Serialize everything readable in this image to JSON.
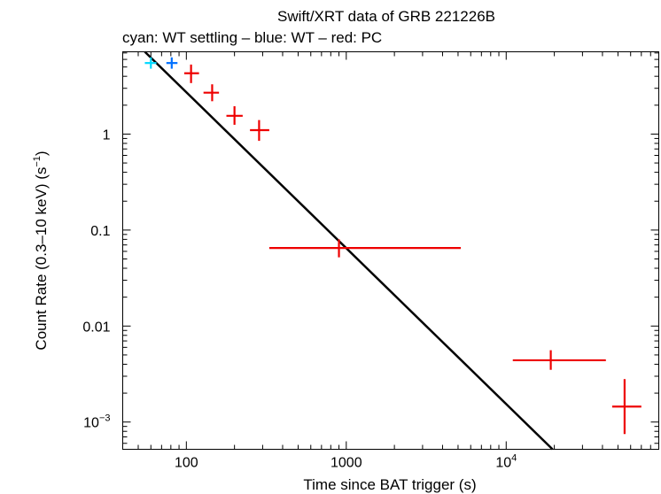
{
  "chart_data": {
    "type": "scatter",
    "title": "Swift/XRT data of GRB 221226B",
    "subtitle": "cyan: WT settling – blue: WT – red: PC",
    "xlabel": "Time since BAT trigger (s)",
    "ylabel": "Count Rate (0.3–10 keV) (s",
    "ylabel_sup": "−1",
    "ylabel_tail": ")",
    "x_scale": "log",
    "y_scale": "log",
    "xlim": [
      40,
      90000
    ],
    "ylim": [
      0.00052,
      7.2
    ],
    "grid": false,
    "x_ticks": [
      {
        "value": 100,
        "label": "100"
      },
      {
        "value": 1000,
        "label": "1000"
      },
      {
        "value": 10000,
        "label": "10",
        "sup": "4"
      }
    ],
    "y_ticks": [
      {
        "value": 1,
        "label": "1"
      },
      {
        "value": 0.1,
        "label": "0.1"
      },
      {
        "value": 0.01,
        "label": "0.01"
      },
      {
        "value": 0.001,
        "label": "10",
        "sup": "−3"
      }
    ],
    "series": [
      {
        "name": "WT settling",
        "color": "#00d8ff",
        "points": [
          {
            "x": 60,
            "y": 5.5,
            "xerr": [
              55,
              65
            ],
            "yerr": [
              4.8,
              6.3
            ]
          }
        ]
      },
      {
        "name": "WT",
        "color": "#0070ff",
        "points": [
          {
            "x": 81,
            "y": 5.5,
            "xerr": [
              75,
              88
            ],
            "yerr": [
              4.8,
              6.3
            ]
          }
        ]
      },
      {
        "name": "PC",
        "color": "#ee0000",
        "points": [
          {
            "x": 107,
            "y": 4.3,
            "xerr": [
              97,
              120
            ],
            "yerr": [
              3.4,
              5.3
            ]
          },
          {
            "x": 145,
            "y": 2.7,
            "xerr": [
              128,
              160
            ],
            "yerr": [
              2.2,
              3.3
            ]
          },
          {
            "x": 200,
            "y": 1.55,
            "xerr": [
              178,
              225
            ],
            "yerr": [
              1.25,
              1.95
            ]
          },
          {
            "x": 285,
            "y": 1.1,
            "xerr": [
              250,
              330
            ],
            "yerr": [
              0.85,
              1.4
            ]
          },
          {
            "x": 900,
            "y": 0.065,
            "xerr": [
              330,
              5200
            ],
            "yerr": [
              0.052,
              0.08
            ]
          },
          {
            "x": 19000,
            "y": 0.0044,
            "xerr": [
              11000,
              42000
            ],
            "yerr": [
              0.0035,
              0.0056
            ]
          },
          {
            "x": 55000,
            "y": 0.00145,
            "xerr": [
              46000,
              70000
            ],
            "yerr": [
              0.00075,
              0.0028
            ]
          }
        ]
      }
    ],
    "model": {
      "color": "#000000",
      "points": [
        [
          55,
          7.2
        ],
        [
          19500,
          0.00052
        ]
      ]
    }
  }
}
